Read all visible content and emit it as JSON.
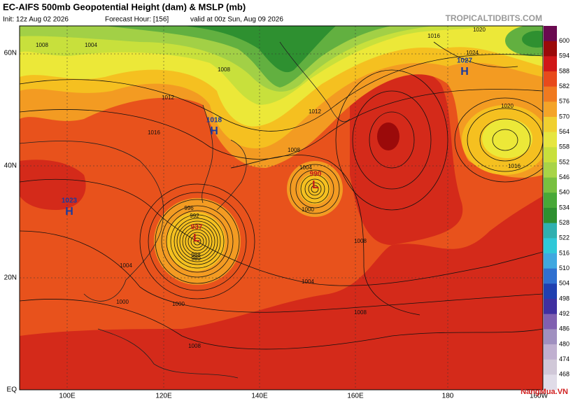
{
  "header": {
    "title": "EC-AIFS 500mb Geopotential Height (dam) & MSLP (mb)",
    "init": "Init: 12z Aug 02 2026",
    "forecast_hour": "Forecast Hour: [156]",
    "valid": "valid at 00z Sun, Aug 09 2026",
    "source": "TROPICALTIDBITS.COM"
  },
  "map": {
    "lat_labels": [
      "60N",
      "40N",
      "20N",
      "EQ"
    ],
    "lon_labels": [
      "100E",
      "120E",
      "140E",
      "160E",
      "180",
      "160W"
    ],
    "pressure_centers": [
      {
        "letter": "H",
        "value": "1018"
      },
      {
        "letter": "H",
        "value": "1027"
      },
      {
        "letter": "H",
        "value": "1023"
      },
      {
        "letter": "L",
        "value": "937"
      },
      {
        "letter": "L",
        "value": "990"
      }
    ],
    "isobar_labels": [
      "1008",
      "1004",
      "1008",
      "1012",
      "1016",
      "1016",
      "1020",
      "1024",
      "1020",
      "1016",
      "1012",
      "1008",
      "1004",
      "1000",
      "996",
      "992",
      "988",
      "980",
      "1000",
      "1004",
      "1008",
      "1004",
      "1000",
      "1008",
      "1008"
    ]
  },
  "colorbar": {
    "labels": [
      "600",
      "594",
      "588",
      "582",
      "576",
      "570",
      "564",
      "558",
      "552",
      "546",
      "540",
      "534",
      "528",
      "522",
      "516",
      "510",
      "504",
      "498",
      "492",
      "486",
      "480",
      "474",
      "468"
    ]
  },
  "watermark": "NangMua.VN"
}
